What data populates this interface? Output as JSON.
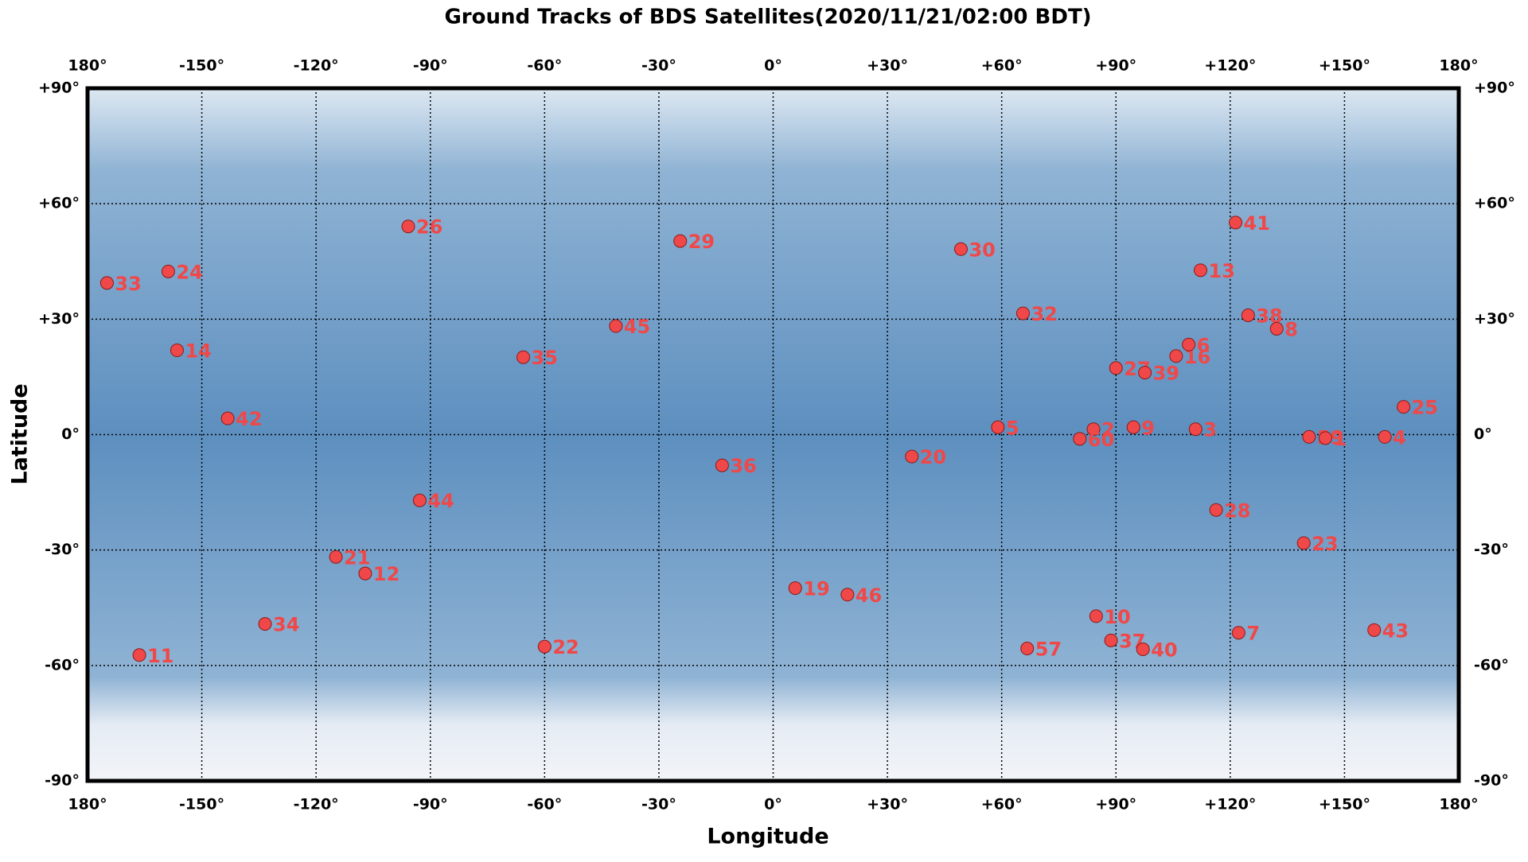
{
  "chart_data": {
    "type": "scatter",
    "title": "Ground Tracks of BDS Satellites(2020/11/21/02:00 BDT)",
    "x_label": "Longitude",
    "y_label": "Latitude",
    "xlim": [
      -180,
      180
    ],
    "ylim": [
      -90,
      90
    ],
    "xticks": [
      {
        "value": -180,
        "label": "180°"
      },
      {
        "value": -150,
        "label": "-150°"
      },
      {
        "value": -120,
        "label": "-120°"
      },
      {
        "value": -90,
        "label": "-90°"
      },
      {
        "value": -60,
        "label": "-60°"
      },
      {
        "value": -30,
        "label": "-30°"
      },
      {
        "value": 0,
        "label": "0°"
      },
      {
        "value": 30,
        "label": "+30°"
      },
      {
        "value": 60,
        "label": "+60°"
      },
      {
        "value": 90,
        "label": "+90°"
      },
      {
        "value": 120,
        "label": "+120°"
      },
      {
        "value": 150,
        "label": "+150°"
      },
      {
        "value": 180,
        "label": "180°"
      }
    ],
    "yticks": [
      {
        "value": -90,
        "label": "-90°"
      },
      {
        "value": -60,
        "label": "-60°"
      },
      {
        "value": -30,
        "label": "-30°"
      },
      {
        "value": 0,
        "label": "0°"
      },
      {
        "value": 30,
        "label": "+30°"
      },
      {
        "value": 60,
        "label": "+60°"
      },
      {
        "value": 90,
        "label": "+90°"
      }
    ],
    "grid": true,
    "color": "#f04848",
    "labels": [
      "11",
      "33",
      "24",
      "14",
      "42",
      "26",
      "44",
      "21",
      "12",
      "34",
      "29",
      "45",
      "35",
      "22",
      "36",
      "19",
      "46",
      "20",
      "30",
      "32",
      "5",
      "57",
      "2",
      "60",
      "27",
      "39",
      "9",
      "10",
      "37",
      "40",
      "16",
      "6",
      "13",
      "41",
      "3",
      "28",
      "7",
      "38",
      "8",
      "23",
      "59",
      "1",
      "4",
      "25",
      "43"
    ],
    "x": [
      -166.4,
      -174.9,
      -158.8,
      -156.5,
      -143.2,
      -95.8,
      -92.8,
      -114.8,
      -107.1,
      -133.4,
      -24.4,
      -41.3,
      -65.6,
      -60.0,
      -13.4,
      5.8,
      19.5,
      36.4,
      49.3,
      65.6,
      59.0,
      66.7,
      84.1,
      80.5,
      90.0,
      97.6,
      94.6,
      84.8,
      88.7,
      97.1,
      105.8,
      109.1,
      112.2,
      121.4,
      110.9,
      116.3,
      122.2,
      124.7,
      132.2,
      139.3,
      140.7,
      145.0,
      160.6,
      165.5,
      157.8
    ],
    "y": [
      -57.3,
      39.4,
      42.4,
      21.9,
      4.2,
      54.1,
      -17.1,
      -31.8,
      -36.1,
      -49.2,
      50.3,
      28.2,
      20.1,
      -55.1,
      -8.0,
      -39.9,
      -41.6,
      -5.7,
      48.2,
      31.5,
      1.9,
      -55.6,
      1.4,
      -1.1,
      17.3,
      16.1,
      1.9,
      -47.2,
      -53.5,
      -55.8,
      20.4,
      23.4,
      42.7,
      55.1,
      1.4,
      -19.6,
      -51.5,
      31.0,
      27.5,
      -28.2,
      -0.6,
      -0.9,
      -0.6,
      7.2,
      -50.8
    ]
  }
}
